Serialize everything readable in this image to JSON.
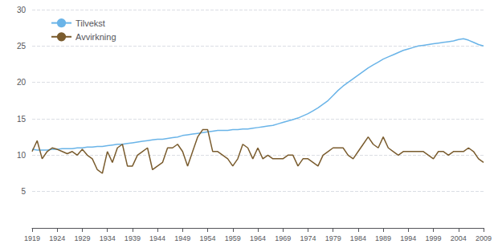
{
  "chart_data": {
    "type": "line",
    "x": [
      1919,
      1920,
      1921,
      1922,
      1923,
      1924,
      1925,
      1926,
      1927,
      1928,
      1929,
      1930,
      1931,
      1932,
      1933,
      1934,
      1935,
      1936,
      1937,
      1938,
      1939,
      1940,
      1941,
      1942,
      1943,
      1944,
      1945,
      1946,
      1947,
      1948,
      1949,
      1950,
      1951,
      1952,
      1953,
      1954,
      1955,
      1956,
      1957,
      1958,
      1959,
      1960,
      1961,
      1962,
      1963,
      1964,
      1965,
      1966,
      1967,
      1968,
      1969,
      1970,
      1971,
      1972,
      1973,
      1974,
      1975,
      1976,
      1977,
      1978,
      1979,
      1980,
      1981,
      1982,
      1983,
      1984,
      1985,
      1986,
      1987,
      1988,
      1989,
      1990,
      1991,
      1992,
      1993,
      1994,
      1995,
      1996,
      1997,
      1998,
      1999,
      2000,
      2001,
      2002,
      2003,
      2004,
      2005,
      2006,
      2007,
      2008,
      2009
    ],
    "series": [
      {
        "name": "Tilvekst",
        "color": "#6ab4e8",
        "values": [
          10.8,
          10.7,
          10.7,
          10.7,
          10.8,
          10.8,
          10.9,
          10.9,
          10.9,
          11.0,
          11.0,
          11.1,
          11.1,
          11.2,
          11.2,
          11.3,
          11.4,
          11.5,
          11.5,
          11.6,
          11.7,
          11.8,
          11.9,
          12.0,
          12.1,
          12.2,
          12.2,
          12.3,
          12.4,
          12.5,
          12.7,
          12.8,
          12.9,
          13.0,
          13.1,
          13.2,
          13.3,
          13.4,
          13.4,
          13.4,
          13.5,
          13.5,
          13.6,
          13.6,
          13.7,
          13.8,
          13.9,
          14.0,
          14.1,
          14.3,
          14.5,
          14.7,
          14.9,
          15.1,
          15.4,
          15.7,
          16.1,
          16.5,
          17.0,
          17.5,
          18.2,
          18.9,
          19.5,
          20.0,
          20.5,
          21.0,
          21.5,
          22.0,
          22.4,
          22.8,
          23.2,
          23.5,
          23.8,
          24.1,
          24.4,
          24.6,
          24.8,
          25.0,
          25.1,
          25.2,
          25.3,
          25.4,
          25.5,
          25.6,
          25.7,
          25.9,
          26.0,
          25.8,
          25.5,
          25.2,
          25.0
        ]
      },
      {
        "name": "Avvirkning",
        "color": "#7a5c2e",
        "values": [
          10.5,
          12.0,
          9.5,
          10.5,
          11.0,
          10.8,
          10.5,
          10.2,
          10.5,
          10.0,
          10.8,
          10.0,
          9.5,
          8.0,
          7.5,
          10.5,
          9.0,
          11.0,
          11.5,
          8.5,
          8.5,
          10.0,
          10.5,
          11.0,
          8.0,
          8.5,
          9.0,
          11.0,
          11.0,
          11.5,
          10.5,
          8.5,
          10.5,
          12.5,
          13.5,
          13.5,
          10.5,
          10.5,
          10.0,
          9.5,
          8.5,
          9.5,
          11.5,
          11.0,
          9.5,
          11.0,
          9.5,
          10.0,
          9.5,
          9.5,
          9.5,
          10.0,
          10.0,
          8.5,
          9.5,
          9.5,
          9.0,
          8.5,
          10.0,
          10.5,
          11.0,
          11.0,
          11.0,
          10.0,
          9.5,
          10.5,
          11.5,
          12.5,
          11.5,
          11.0,
          12.5,
          11.0,
          10.5,
          10.0,
          10.5,
          10.5,
          10.5,
          10.5,
          10.5,
          10.0,
          9.5,
          10.5,
          10.5,
          10.0,
          10.5,
          10.5,
          10.5,
          11.0,
          10.5,
          9.5,
          9.0
        ]
      }
    ],
    "xlim": [
      1919,
      2009
    ],
    "xticks": [
      1919,
      1924,
      1929,
      1934,
      1939,
      1944,
      1949,
      1954,
      1959,
      1964,
      1969,
      1974,
      1979,
      1984,
      1989,
      1994,
      1999,
      2004,
      2009
    ],
    "ylim": [
      0,
      30
    ],
    "yticks": [
      5,
      10,
      15,
      20,
      25,
      30
    ],
    "grid": true,
    "legend": "upper left"
  }
}
